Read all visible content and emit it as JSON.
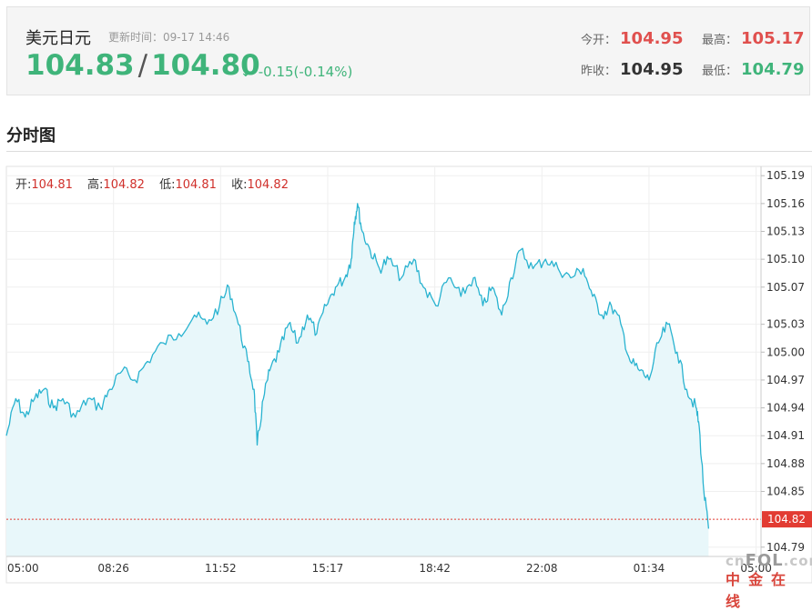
{
  "quote": {
    "name": "美元日元",
    "update_time": "更新时间：09-17 14:46",
    "bid": "104.83",
    "separator": "/",
    "ask": "104.80",
    "arrow": "↓",
    "change": "-0.15(-0.14%)",
    "open_label": "今开：",
    "open_value": "104.95",
    "prev_close_label": "昨收：",
    "prev_close_value": "104.95",
    "high_label": "最高：",
    "high_value": "105.17",
    "low_label": "最低：",
    "low_value": "104.79"
  },
  "section_title": "分时图",
  "ohlc": {
    "open_label": "开:",
    "open_value": "104.81",
    "high_label": "高:",
    "high_value": "104.82",
    "low_label": "低:",
    "low_value": "104.81",
    "close_label": "收:",
    "close_value": "104.82"
  },
  "watermark": {
    "top_prefix": "cn",
    "top_brand": "FOL",
    "top_suffix": ".com",
    "bottom": "中金在线"
  },
  "colors": {
    "line": "#29b3d0",
    "fill": "#e8f7fa",
    "up": "#e0504e",
    "down": "#3fb47a",
    "current_line": "#e23b32"
  },
  "chart_data": {
    "type": "area",
    "x_ticks": [
      "05:00",
      "08:26",
      "11:52",
      "15:17",
      "18:42",
      "22:08",
      "01:34",
      "05:00"
    ],
    "y_ticks": [
      "105.19",
      "105.16",
      "105.13",
      "105.10",
      "105.07",
      "105.03",
      "105.00",
      "104.97",
      "104.94",
      "104.91",
      "104.88",
      "104.85",
      "104.79"
    ],
    "ylim": [
      104.78,
      105.2
    ],
    "current_value": "104.82",
    "grid": true,
    "x_start": "05:00",
    "series": [
      {
        "values": [
          [
            0.0,
            104.91
          ],
          [
            0.3,
            104.95
          ],
          [
            0.6,
            104.93
          ],
          [
            0.9,
            104.95
          ],
          [
            1.2,
            104.96
          ],
          [
            1.5,
            104.94
          ],
          [
            1.8,
            104.95
          ],
          [
            2.2,
            104.93
          ],
          [
            2.6,
            104.95
          ],
          [
            3.0,
            104.94
          ],
          [
            3.3,
            104.96
          ],
          [
            3.7,
            104.98
          ],
          [
            4.1,
            104.97
          ],
          [
            4.5,
            104.99
          ],
          [
            5.0,
            105.01
          ],
          [
            5.5,
            105.02
          ],
          [
            6.0,
            105.04
          ],
          [
            6.4,
            105.03
          ],
          [
            6.8,
            105.05
          ],
          [
            7.1,
            105.07
          ],
          [
            7.4,
            105.03
          ],
          [
            7.7,
            104.99
          ],
          [
            7.9,
            104.96
          ],
          [
            8.0,
            104.9
          ],
          [
            8.2,
            104.95
          ],
          [
            8.4,
            104.98
          ],
          [
            8.7,
            105.0
          ],
          [
            9.0,
            105.03
          ],
          [
            9.3,
            105.01
          ],
          [
            9.6,
            105.04
          ],
          [
            9.9,
            105.02
          ],
          [
            10.2,
            105.05
          ],
          [
            10.5,
            105.07
          ],
          [
            10.8,
            105.08
          ],
          [
            11.0,
            105.1
          ],
          [
            11.1,
            105.14
          ],
          [
            11.2,
            105.16
          ],
          [
            11.35,
            105.13
          ],
          [
            11.6,
            105.11
          ],
          [
            11.9,
            105.09
          ],
          [
            12.2,
            105.1
          ],
          [
            12.6,
            105.08
          ],
          [
            13.0,
            105.1
          ],
          [
            13.3,
            105.07
          ],
          [
            13.7,
            105.05
          ],
          [
            14.1,
            105.08
          ],
          [
            14.5,
            105.06
          ],
          [
            14.9,
            105.08
          ],
          [
            15.2,
            105.05
          ],
          [
            15.5,
            105.07
          ],
          [
            15.8,
            105.04
          ],
          [
            16.1,
            105.08
          ],
          [
            16.4,
            105.11
          ],
          [
            16.8,
            105.09
          ],
          [
            17.2,
            105.1
          ],
          [
            17.6,
            105.09
          ],
          [
            18.0,
            105.08
          ],
          [
            18.4,
            105.09
          ],
          [
            18.7,
            105.06
          ],
          [
            19.0,
            105.04
          ],
          [
            19.3,
            105.05
          ],
          [
            19.6,
            105.03
          ],
          [
            19.9,
            104.99
          ],
          [
            20.2,
            104.98
          ],
          [
            20.5,
            104.97
          ],
          [
            20.8,
            105.01
          ],
          [
            21.1,
            105.03
          ],
          [
            21.4,
            105.0
          ],
          [
            21.7,
            104.96
          ],
          [
            22.0,
            104.94
          ],
          [
            22.1,
            104.92
          ],
          [
            22.25,
            104.85
          ],
          [
            22.4,
            104.81
          ]
        ]
      }
    ]
  }
}
